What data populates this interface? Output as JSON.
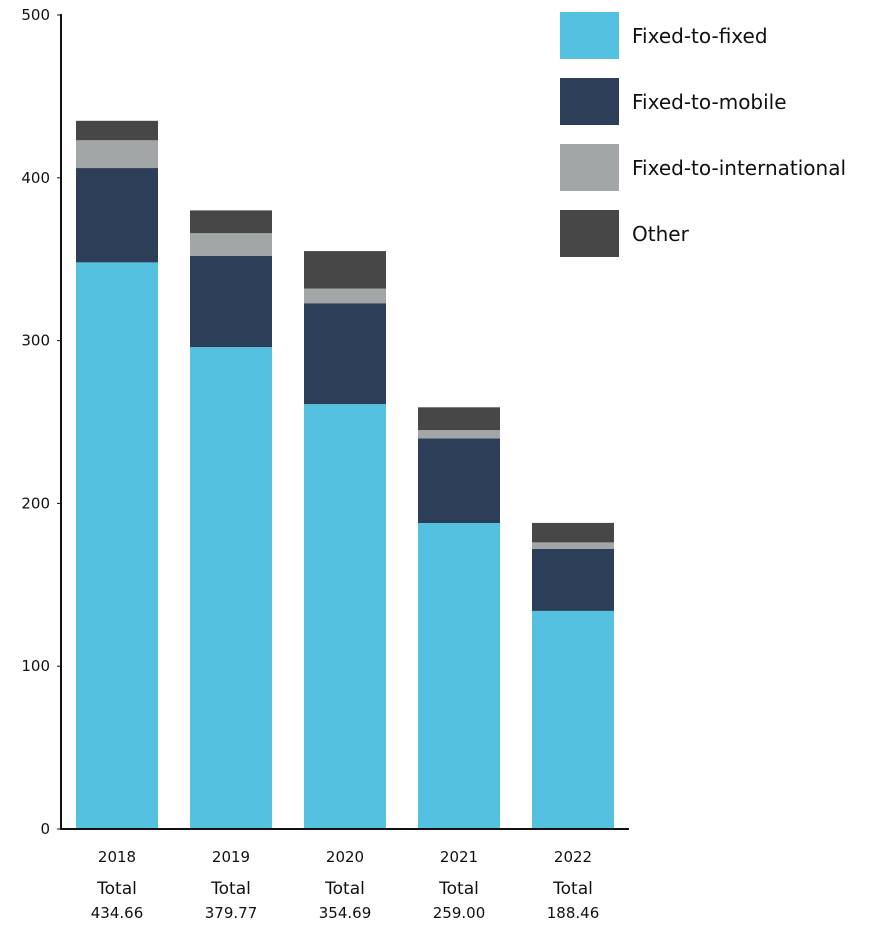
{
  "chart_data": {
    "type": "bar",
    "stacked": true,
    "categories": [
      "2018",
      "2019",
      "2020",
      "2021",
      "2022"
    ],
    "totals_label": "Total",
    "totals": [
      "434.66",
      "379.77",
      "354.69",
      "259.00",
      "188.46"
    ],
    "series": [
      {
        "name": "Fixed-to-fixed",
        "color": "#55c1e0",
        "values": [
          348,
          296,
          261,
          188,
          134
        ]
      },
      {
        "name": "Fixed-to-mobile",
        "color": "#2d3f58",
        "values": [
          58,
          56,
          62,
          52,
          38
        ]
      },
      {
        "name": "Fixed-to-international",
        "color": "#a3a6a6",
        "values": [
          17,
          14,
          9,
          5,
          4
        ]
      },
      {
        "name": "Other",
        "color": "#474747",
        "values": [
          12,
          14,
          23,
          14,
          12
        ]
      }
    ],
    "ylim": [
      0,
      500
    ],
    "yticks": [
      0,
      100,
      200,
      300,
      400,
      500
    ],
    "legend_position": "top-right",
    "grid": false,
    "xlabel": "",
    "ylabel": ""
  }
}
